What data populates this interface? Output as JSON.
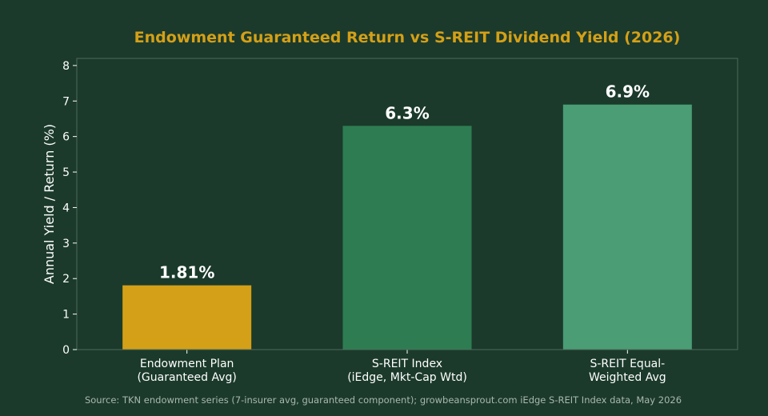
{
  "colors": {
    "background": "#1b3a2b",
    "title": "#d4a017",
    "text": "#ffffff",
    "axis": "#4f6a5b",
    "source": "#aab8ae"
  },
  "chart_data": {
    "type": "bar",
    "title": "Endowment Guaranteed Return vs S-REIT Dividend Yield (2026)",
    "xlabel": "",
    "ylabel": "Annual Yield / Return (%)",
    "ylim": [
      0,
      8.2
    ],
    "yticks": [
      0,
      1,
      2,
      3,
      4,
      5,
      6,
      7,
      8
    ],
    "grid": false,
    "categories": [
      [
        "Endowment Plan",
        "(Guaranteed Avg)"
      ],
      [
        "S-REIT Index",
        "(iEdge, Mkt-Cap Wtd)"
      ],
      [
        "S-REIT Equal-",
        "Weighted Avg"
      ]
    ],
    "values": [
      1.81,
      6.3,
      6.9
    ],
    "data_labels": [
      "1.81%",
      "6.3%",
      "6.9%"
    ],
    "bar_colors": [
      "#d4a017",
      "#2e7d52",
      "#4a9d74"
    ]
  },
  "source_note": "Source: TKN endowment series (7-insurer avg, guaranteed component); growbeansprout.com iEdge S-REIT Index data, May 2026"
}
